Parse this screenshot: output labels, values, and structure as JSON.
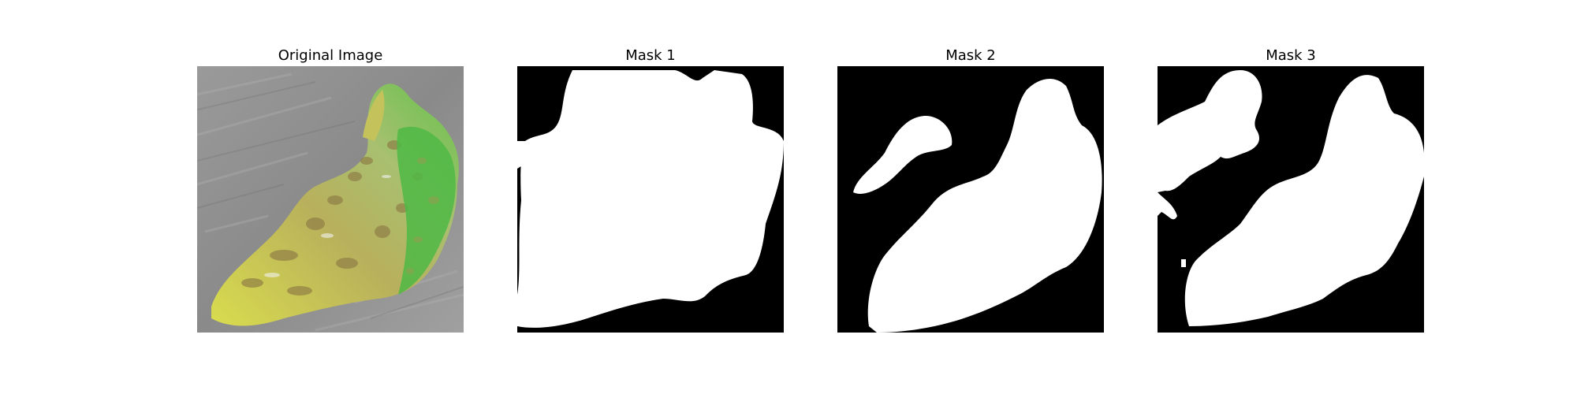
{
  "figure": {
    "panels": [
      {
        "id": "original",
        "title": "Original Image"
      },
      {
        "id": "mask-1",
        "title": "Mask 1"
      },
      {
        "id": "mask-2",
        "title": "Mask 2"
      },
      {
        "id": "mask-3",
        "title": "Mask 3"
      }
    ]
  },
  "colors": {
    "background": "#ffffff",
    "mask_background": "#000000",
    "mask_foreground": "#ffffff",
    "photo_background": "#8e8e8e",
    "leaf_yellow": "#cfd06a",
    "leaf_green": "#59b84a"
  }
}
